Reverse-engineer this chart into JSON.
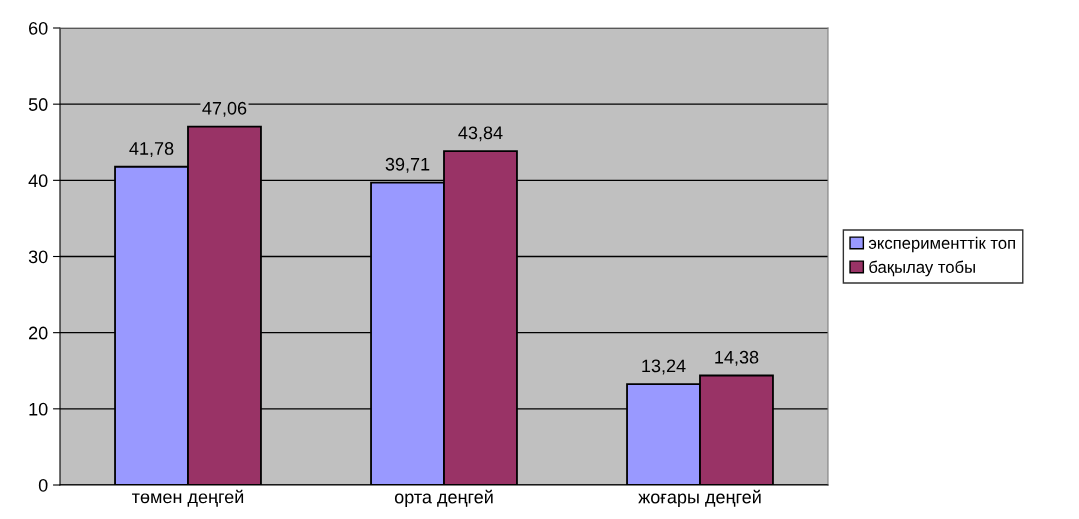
{
  "chart_data": {
    "type": "bar",
    "categories": [
      "төмен деңгей",
      "орта деңгей",
      "жоғары деңгей"
    ],
    "series": [
      {
        "name": "эксперименттік топ",
        "color": "#9999ff",
        "values": [
          41.78,
          39.71,
          13.24
        ],
        "value_labels": [
          "41,78",
          "39,71",
          "13,24"
        ]
      },
      {
        "name": "бақылау тобы",
        "color": "#993366",
        "values": [
          47.06,
          43.84,
          14.38
        ],
        "value_labels": [
          "47,06",
          "43,84",
          "14,38"
        ]
      }
    ],
    "ylim": [
      0,
      60
    ],
    "yticks": [
      0,
      10,
      20,
      30,
      40,
      50,
      60
    ],
    "grid": "y",
    "legend": "right"
  }
}
